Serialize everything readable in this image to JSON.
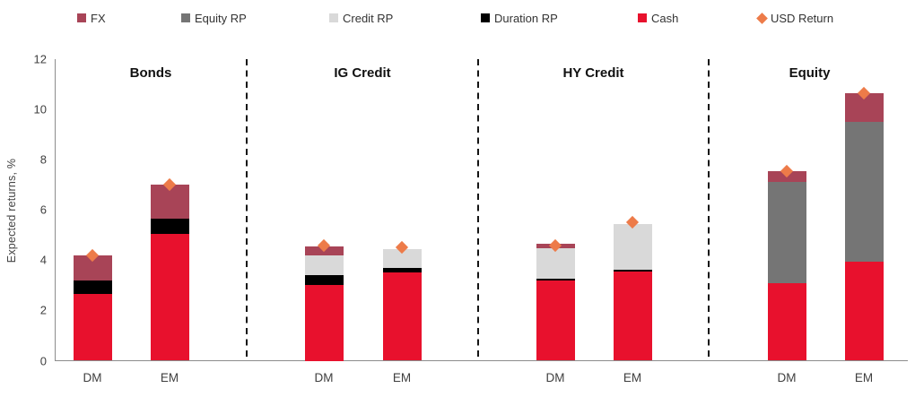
{
  "legend": {
    "items": [
      {
        "label": "FX",
        "color": "#A84457",
        "shape": "square"
      },
      {
        "label": "Equity RP",
        "color": "#757575",
        "shape": "square"
      },
      {
        "label": "Credit RP",
        "color": "#D9D9D9",
        "shape": "square"
      },
      {
        "label": "Duration RP",
        "color": "#000000",
        "shape": "square"
      },
      {
        "label": "Cash",
        "color": "#E8112D",
        "shape": "square"
      },
      {
        "label": "USD Return",
        "color": "#ED7B49",
        "shape": "diamond"
      }
    ]
  },
  "chart_data": {
    "type": "bar",
    "stacked": true,
    "ylabel": "Expected returns, %",
    "ylim": [
      0,
      12
    ],
    "yticks": [
      0,
      2,
      4,
      6,
      8,
      10,
      12
    ],
    "grid": false,
    "legend_position": "top",
    "series": [
      {
        "key": "cash",
        "name": "Cash",
        "color": "#E8112D"
      },
      {
        "key": "duration_rp",
        "name": "Duration RP",
        "color": "#000000"
      },
      {
        "key": "credit_rp",
        "name": "Credit RP",
        "color": "#D9D9D9"
      },
      {
        "key": "equity_rp",
        "name": "Equity RP",
        "color": "#757575"
      },
      {
        "key": "fx",
        "name": "FX",
        "color": "#A84457"
      }
    ],
    "marker": {
      "name": "USD Return",
      "color": "#ED7B49"
    },
    "groups": [
      {
        "name": "Bonds",
        "bars": [
          {
            "label": "DM",
            "segments": [
              2.65,
              0.55,
              0,
              0,
              1.0
            ],
            "usd_return": 4.2
          },
          {
            "label": "EM",
            "segments": [
              5.05,
              0.6,
              0,
              0,
              1.35
            ],
            "usd_return": 7.0
          }
        ]
      },
      {
        "name": "IG Credit",
        "bars": [
          {
            "label": "DM",
            "segments": [
              3.0,
              0.4,
              0.8,
              0,
              0.35
            ],
            "usd_return": 4.6
          },
          {
            "label": "EM",
            "segments": [
              3.5,
              0.2,
              0.75,
              0,
              0
            ],
            "usd_return": 4.5
          }
        ]
      },
      {
        "name": "HY Credit",
        "bars": [
          {
            "label": "DM",
            "segments": [
              3.2,
              0.07,
              1.2,
              0,
              0.18
            ],
            "usd_return": 4.6
          },
          {
            "label": "EM",
            "segments": [
              3.55,
              0.07,
              1.83,
              0,
              0
            ],
            "usd_return": 5.5
          }
        ]
      },
      {
        "name": "Equity",
        "bars": [
          {
            "label": "DM",
            "segments": [
              3.1,
              0,
              0,
              4.0,
              0.45
            ],
            "usd_return": 7.55
          },
          {
            "label": "EM",
            "segments": [
              3.95,
              0,
              0,
              5.55,
              1.15
            ],
            "usd_return": 10.65
          }
        ]
      }
    ]
  }
}
